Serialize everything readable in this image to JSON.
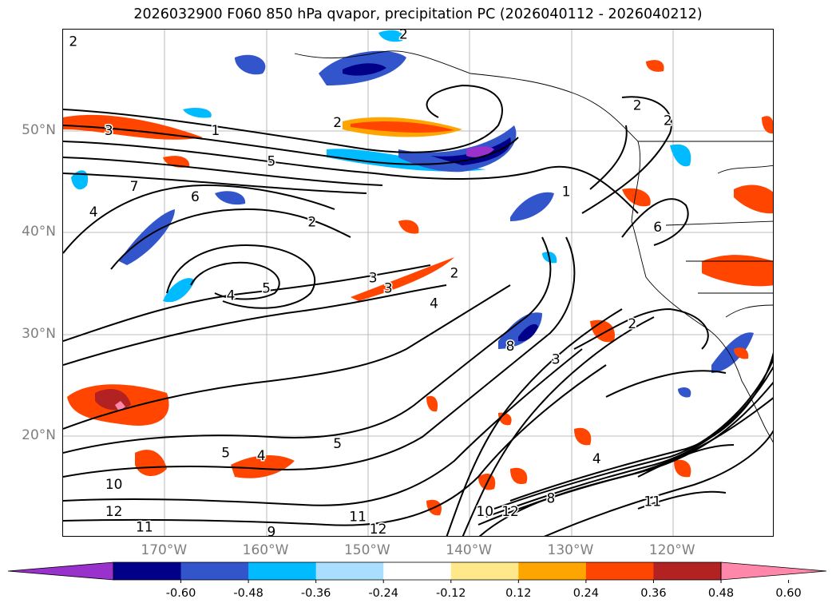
{
  "title": "2026032900 F060 850 hPa qvapor, precipitation PC (2026040112 - 2026040212)",
  "map": {
    "lat_labels": [
      {
        "text": "50°N",
        "lat": 50
      },
      {
        "text": "40°N",
        "lat": 40
      },
      {
        "text": "30°N",
        "lat": 30
      },
      {
        "text": "20°N",
        "lat": 20
      }
    ],
    "lon_labels": [
      {
        "text": "170°W",
        "lon": -170
      },
      {
        "text": "160°W",
        "lon": -160
      },
      {
        "text": "150°W",
        "lon": -150
      },
      {
        "text": "140°W",
        "lon": -140
      },
      {
        "text": "130°W",
        "lon": -130
      },
      {
        "text": "120°W",
        "lon": -120
      }
    ],
    "contour_labels": [
      {
        "text": "2",
        "lon": -179.0,
        "lat": 58.8
      },
      {
        "text": "2",
        "lon": -146.5,
        "lat": 59.5
      },
      {
        "text": "2",
        "lon": -123.5,
        "lat": 52.5
      },
      {
        "text": "2",
        "lon": -120.5,
        "lat": 51.0
      },
      {
        "text": "3",
        "lon": -175.5,
        "lat": 50.0
      },
      {
        "text": "1",
        "lon": -165.0,
        "lat": 50.0
      },
      {
        "text": "2",
        "lon": -153.0,
        "lat": 50.8
      },
      {
        "text": "5",
        "lon": -159.5,
        "lat": 47.0
      },
      {
        "text": "7",
        "lon": -173.0,
        "lat": 44.5
      },
      {
        "text": "6",
        "lon": -167.0,
        "lat": 43.5
      },
      {
        "text": "4",
        "lon": -177.0,
        "lat": 42.0
      },
      {
        "text": "2",
        "lon": -155.5,
        "lat": 41.0
      },
      {
        "text": "1",
        "lon": -130.5,
        "lat": 44.0
      },
      {
        "text": "6",
        "lon": -121.5,
        "lat": 40.5
      },
      {
        "text": "3",
        "lon": -149.5,
        "lat": 35.5
      },
      {
        "text": "3",
        "lon": -148.0,
        "lat": 34.5
      },
      {
        "text": "2",
        "lon": -141.5,
        "lat": 36.0
      },
      {
        "text": "4",
        "lon": -163.5,
        "lat": 33.8
      },
      {
        "text": "5",
        "lon": -160.0,
        "lat": 34.5
      },
      {
        "text": "4",
        "lon": -143.5,
        "lat": 33.0
      },
      {
        "text": "8",
        "lon": -136.0,
        "lat": 28.8
      },
      {
        "text": "3",
        "lon": -131.5,
        "lat": 27.5
      },
      {
        "text": "2",
        "lon": -124.0,
        "lat": 31.0
      },
      {
        "text": "5",
        "lon": -153.0,
        "lat": 19.2
      },
      {
        "text": "5",
        "lon": -164.0,
        "lat": 18.3
      },
      {
        "text": "4",
        "lon": -160.5,
        "lat": 18.0
      },
      {
        "text": "4",
        "lon": -127.5,
        "lat": 17.7
      },
      {
        "text": "10",
        "lon": -175.0,
        "lat": 15.2
      },
      {
        "text": "12",
        "lon": -175.0,
        "lat": 12.5
      },
      {
        "text": "11",
        "lon": -172.0,
        "lat": 11.0
      },
      {
        "text": "11",
        "lon": -151.0,
        "lat": 12.0
      },
      {
        "text": "12",
        "lon": -149.0,
        "lat": 10.8
      },
      {
        "text": "9",
        "lon": -159.5,
        "lat": 10.5
      },
      {
        "text": "10",
        "lon": -138.5,
        "lat": 12.5
      },
      {
        "text": "12",
        "lon": -136.0,
        "lat": 12.5
      },
      {
        "text": "11",
        "lon": -122.0,
        "lat": 13.5
      },
      {
        "text": "8",
        "lon": -132.0,
        "lat": 13.8
      }
    ]
  },
  "colorbar": {
    "colors": [
      "#9932cc",
      "#000088",
      "#3355cc",
      "#00bbff",
      "#aadeff",
      "#ffffff",
      "#ffe88a",
      "#ffa500",
      "#ff4500",
      "#b22222",
      "#ff88aa"
    ],
    "ticks": [
      "-0.60",
      "-0.48",
      "-0.36",
      "-0.24",
      "-0.12",
      "0.12",
      "0.24",
      "0.36",
      "0.48",
      "0.60"
    ]
  }
}
